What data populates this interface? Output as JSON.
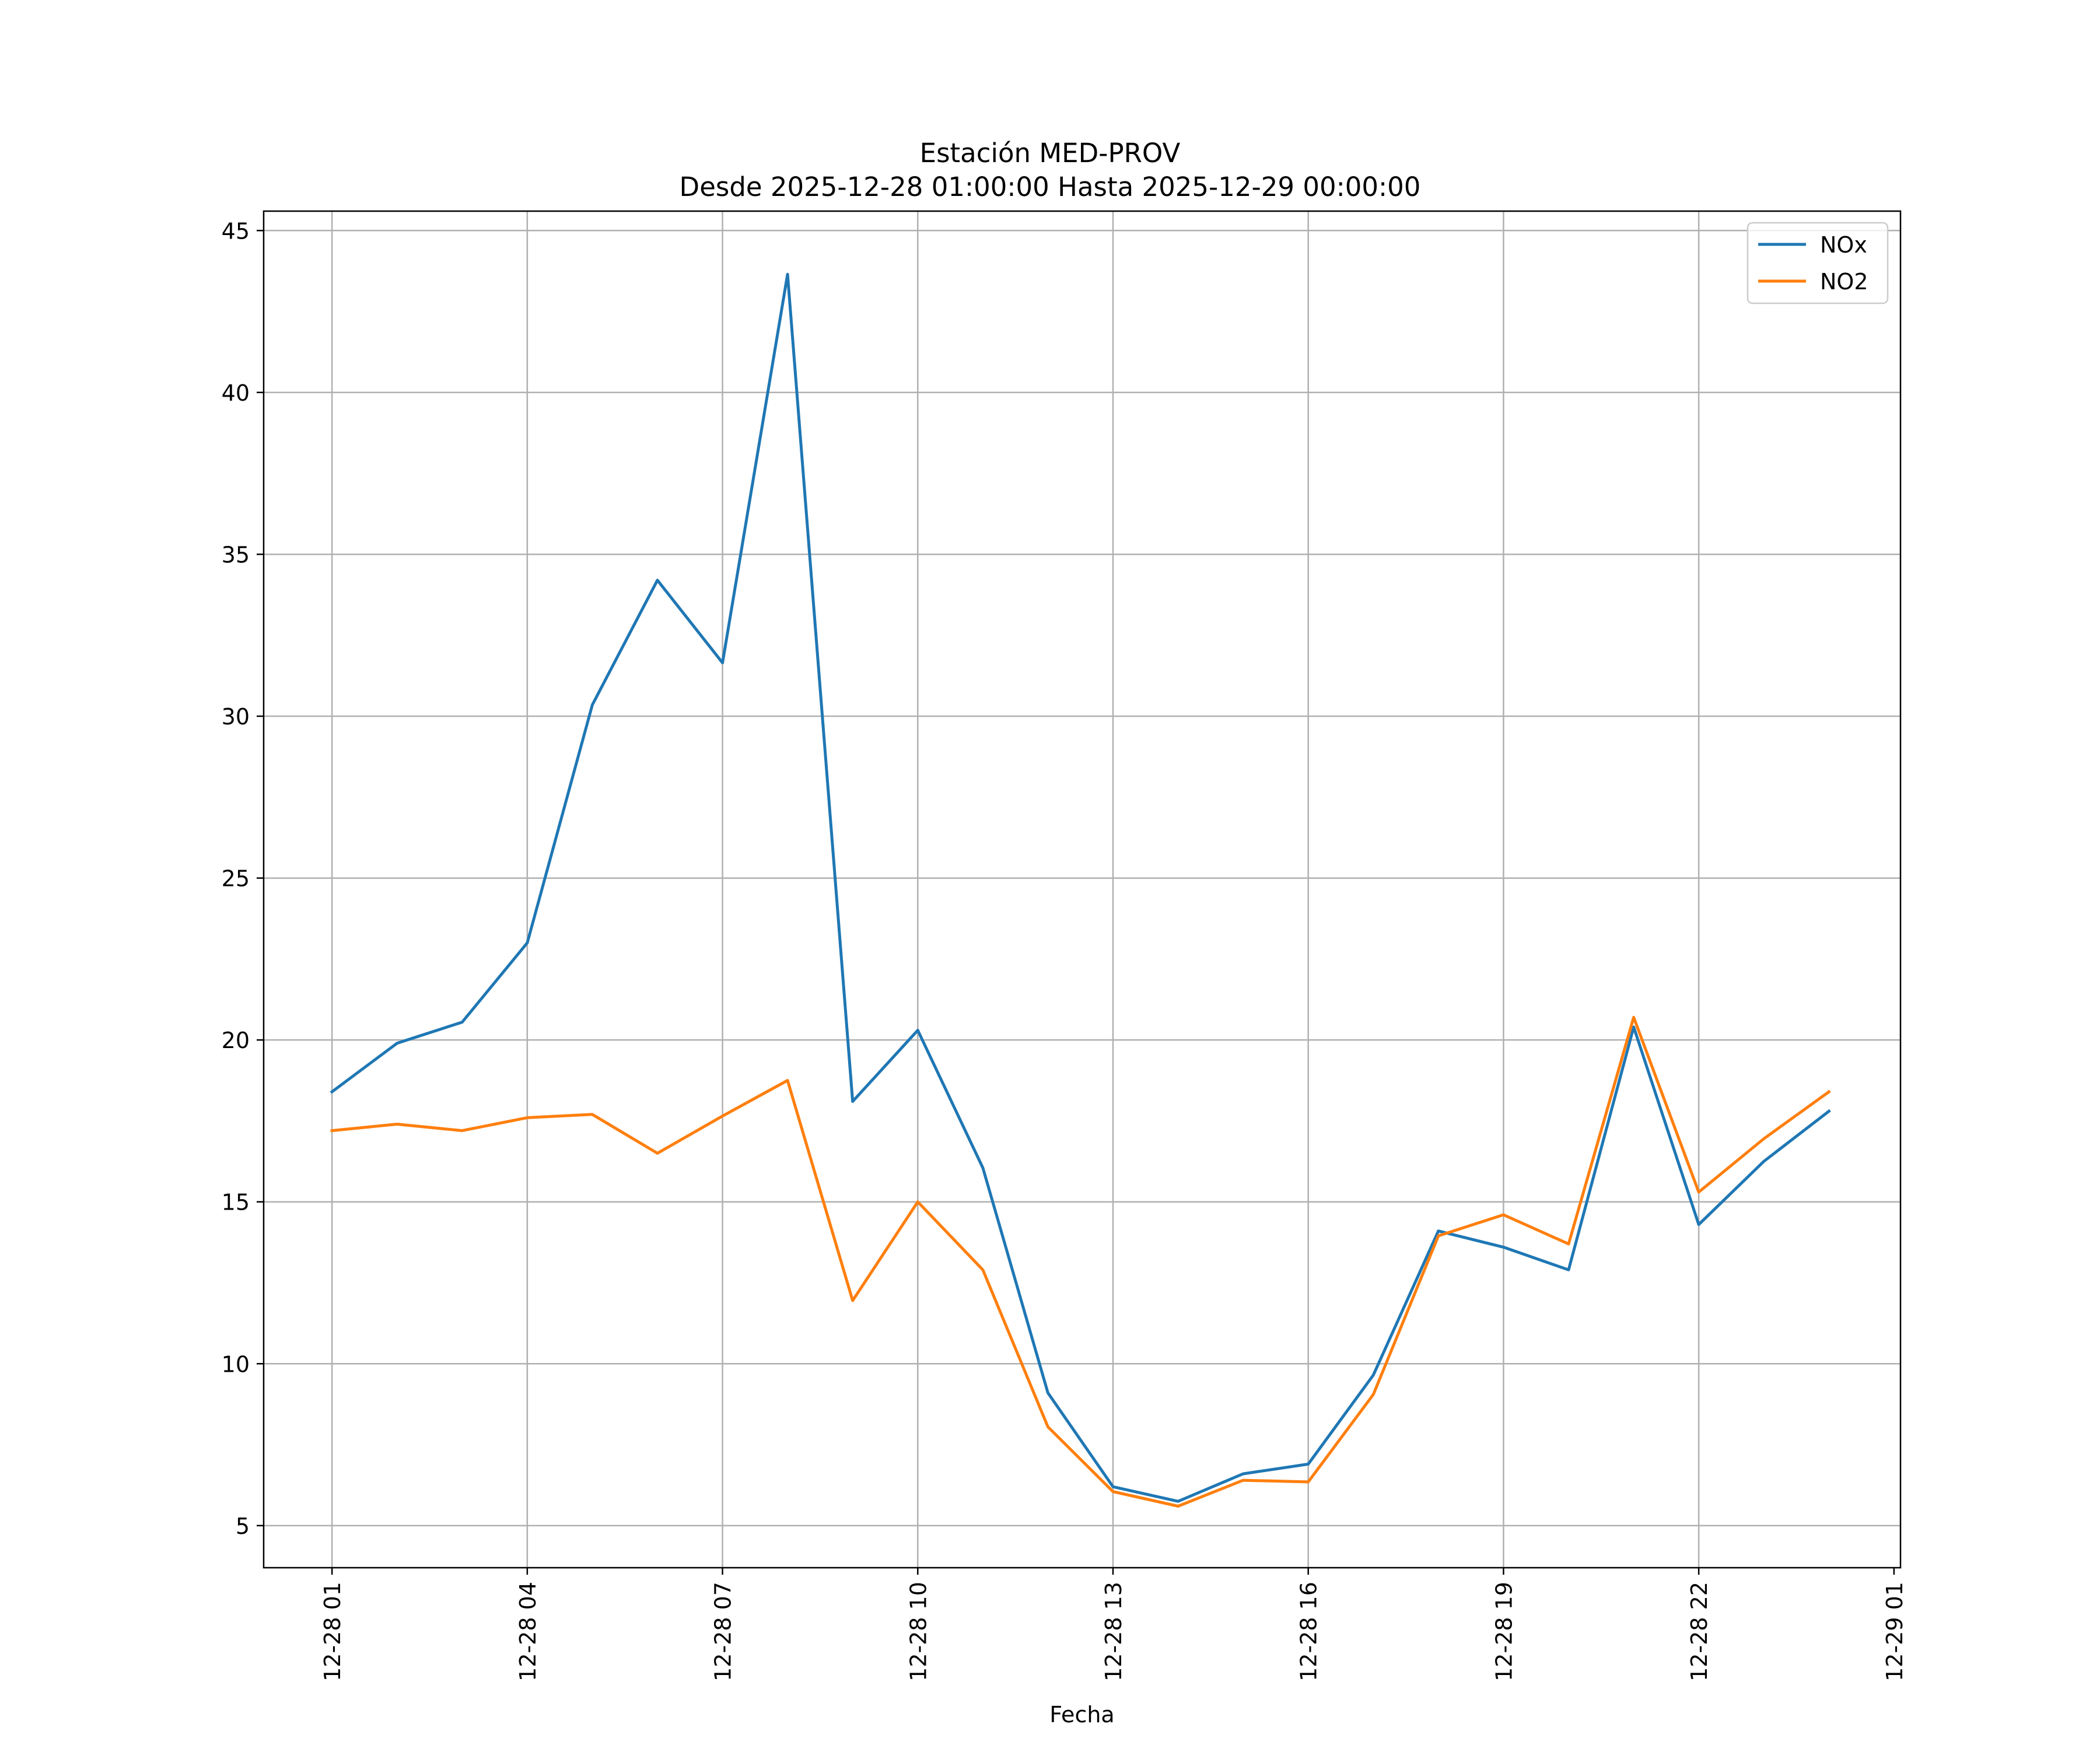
{
  "chart_data": {
    "type": "line",
    "title": "Estación MED-PROV",
    "subtitle": "Desde 2025-12-28 01:00:00 Hasta 2025-12-29 00:00:00",
    "xlabel": "Fecha",
    "ylabel": "",
    "x": [
      "12-28 01",
      "12-28 02",
      "12-28 03",
      "12-28 04",
      "12-28 05",
      "12-28 06",
      "12-28 07",
      "12-28 08",
      "12-28 09",
      "12-28 10",
      "12-28 11",
      "12-28 12",
      "12-28 13",
      "12-28 14",
      "12-28 15",
      "12-28 16",
      "12-28 17",
      "12-28 18",
      "12-28 19",
      "12-28 20",
      "12-28 21",
      "12-28 22",
      "12-28 23",
      "12-29 00"
    ],
    "x_hours": [
      1,
      2,
      3,
      4,
      5,
      6,
      7,
      8,
      9,
      10,
      11,
      12,
      13,
      14,
      15,
      16,
      17,
      18,
      19,
      20,
      21,
      22,
      23,
      24
    ],
    "xlim_hours": [
      -0.05,
      25.1
    ],
    "x_ticks": [
      {
        "hour": 1,
        "label": "12-28 01"
      },
      {
        "hour": 4,
        "label": "12-28 04"
      },
      {
        "hour": 7,
        "label": "12-28 07"
      },
      {
        "hour": 10,
        "label": "12-28 10"
      },
      {
        "hour": 13,
        "label": "12-28 13"
      },
      {
        "hour": 16,
        "label": "12-28 16"
      },
      {
        "hour": 19,
        "label": "12-28 19"
      },
      {
        "hour": 22,
        "label": "12-28 22"
      },
      {
        "hour": 25,
        "label": "12-29 01"
      }
    ],
    "ylim": [
      3.7,
      45.6
    ],
    "y_ticks": [
      5,
      10,
      15,
      20,
      25,
      30,
      35,
      40,
      45
    ],
    "grid": true,
    "legend_position": "top-right",
    "series": [
      {
        "name": "NOx",
        "color": "#1f77b4",
        "values": [
          18.4,
          19.9,
          20.55,
          23.0,
          30.35,
          34.2,
          31.65,
          43.65,
          18.1,
          20.3,
          16.05,
          9.1,
          6.2,
          5.75,
          6.6,
          6.9,
          9.65,
          14.1,
          13.6,
          12.9,
          20.4,
          14.3,
          16.25,
          17.8
        ]
      },
      {
        "name": "NO2",
        "color": "#ff7f0e",
        "values": [
          17.2,
          17.4,
          17.2,
          17.6,
          17.7,
          16.5,
          17.65,
          18.75,
          11.95,
          15.0,
          12.9,
          8.05,
          6.05,
          5.6,
          6.4,
          6.35,
          9.05,
          13.95,
          14.6,
          13.7,
          20.7,
          15.3,
          16.95,
          18.4
        ]
      }
    ]
  }
}
